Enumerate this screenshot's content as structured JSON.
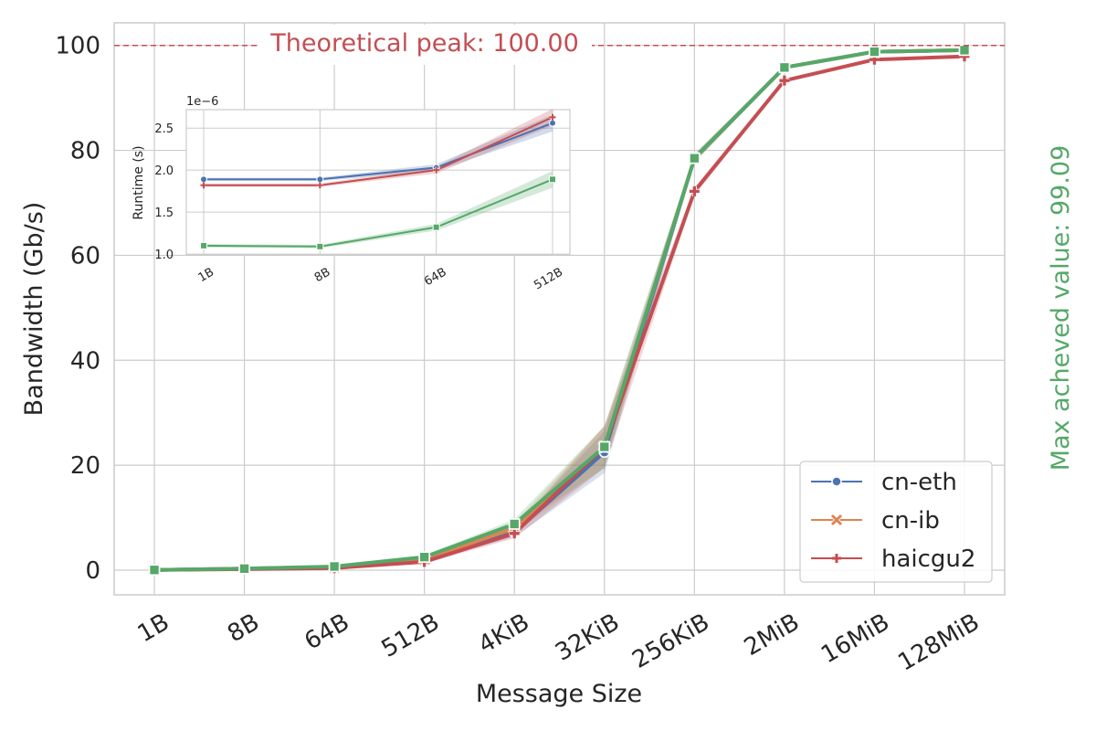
{
  "colors": {
    "background": "#ffffff",
    "grid": "#cccccc",
    "axis_text": "#262626",
    "peak": "#c44e52",
    "max_value": "#55a868",
    "cn_eth": "#4c72b0",
    "cn_ib": "#dd8452",
    "haicgu2": "#c44e52",
    "green_series": "#55a868"
  },
  "chart_data": [
    {
      "type": "line",
      "xlabel": "Message Size",
      "ylabel": "Bandwidth (Gb/s)",
      "categories": [
        "1B",
        "8B",
        "64B",
        "512B",
        "4KiB",
        "32KiB",
        "256KiB",
        "2MiB",
        "16MiB",
        "128MiB"
      ],
      "ylim": [
        -4.7,
        104.3
      ],
      "yticks": [
        0,
        20,
        40,
        60,
        80,
        100
      ],
      "grid": true,
      "legend_position": "bottom-right",
      "peak_line": {
        "value": 100,
        "label": "Theoretical peak: 100.00"
      },
      "right_label": "Max acheved value: 99.09",
      "series": [
        {
          "name": "cn-eth",
          "color": "#4c72b0",
          "marker": "circle",
          "values": [
            0.05,
            0.3,
            0.6,
            1.9,
            7.2,
            22.5,
            78.5,
            95.8,
            98.8,
            99.09
          ]
        },
        {
          "name": "cn-ib",
          "color": "#dd8452",
          "marker": "x",
          "values": [
            0.05,
            0.3,
            0.6,
            2.1,
            8.0,
            23.5,
            78.5,
            95.8,
            98.8,
            99.09
          ]
        },
        {
          "name": "haicgu2",
          "color": "#c44e52",
          "marker": "plus",
          "values": [
            0.04,
            0.2,
            0.4,
            1.6,
            7.0,
            23.5,
            72.2,
            93.3,
            97.3,
            97.9
          ]
        },
        {
          "name": "",
          "color": "#55a868",
          "marker": "square",
          "values": [
            0.05,
            0.3,
            0.7,
            2.5,
            8.8,
            23.5,
            78.5,
            95.8,
            98.8,
            99.09
          ]
        }
      ]
    },
    {
      "type": "line",
      "ylabel": "Runtime (s)",
      "exponent_label": "1e−6",
      "categories": [
        "1B",
        "8B",
        "64B",
        "512B"
      ],
      "ylim": [
        0.99,
        2.72
      ],
      "yticks": [
        "1.0",
        "1.5",
        "2.0",
        "2.5"
      ],
      "ytick_values": [
        1.0,
        1.5,
        2.0,
        2.5
      ],
      "grid": true,
      "series": [
        {
          "name": "cn-eth",
          "color": "#4c72b0",
          "marker": "circle",
          "values": [
            1.89,
            1.89,
            2.03,
            2.56
          ]
        },
        {
          "name": "haicgu2",
          "color": "#c44e52",
          "marker": "plus",
          "values": [
            1.82,
            1.82,
            2.0,
            2.63
          ]
        },
        {
          "name": "",
          "color": "#55a868",
          "marker": "square",
          "values": [
            1.1,
            1.09,
            1.32,
            1.89
          ]
        }
      ]
    }
  ]
}
